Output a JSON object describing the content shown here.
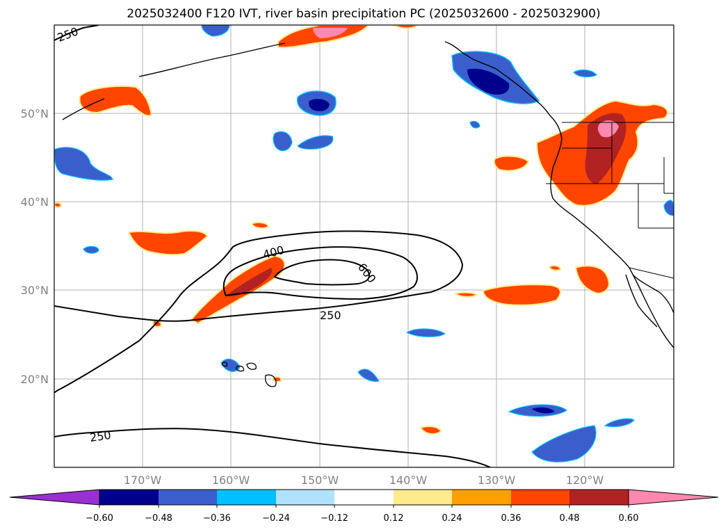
{
  "title": "2025032400 F120 IVT, river basin precipitation PC (2025032600 - 2025032900)",
  "lat_ticks": [
    "50°N",
    "40°N",
    "30°N",
    "20°N"
  ],
  "lon_ticks": [
    "170°W",
    "160°W",
    "150°W",
    "140°W",
    "130°W",
    "120°W"
  ],
  "colorbar": {
    "tick_labels": [
      "−0.60",
      "−0.48",
      "−0.36",
      "−0.24",
      "−0.12",
      "0.12",
      "0.24",
      "0.36",
      "0.48",
      "0.60"
    ],
    "colors": [
      "#9b30d0",
      "#00008c",
      "#3a5fcd",
      "#00bfff",
      "#b0e2ff",
      "#ffffff",
      "#ffeb8c",
      "#ffa000",
      "#ff4500",
      "#b22222",
      "#ff88b0"
    ]
  },
  "contour_labels": {
    "c250_nw": "250",
    "c400": "400",
    "c600": "600",
    "c250_mid": "250",
    "c250_south": "250"
  },
  "colors": {
    "coastline": "#000000",
    "grid": "#b0b0b0",
    "frame": "#000000"
  }
}
